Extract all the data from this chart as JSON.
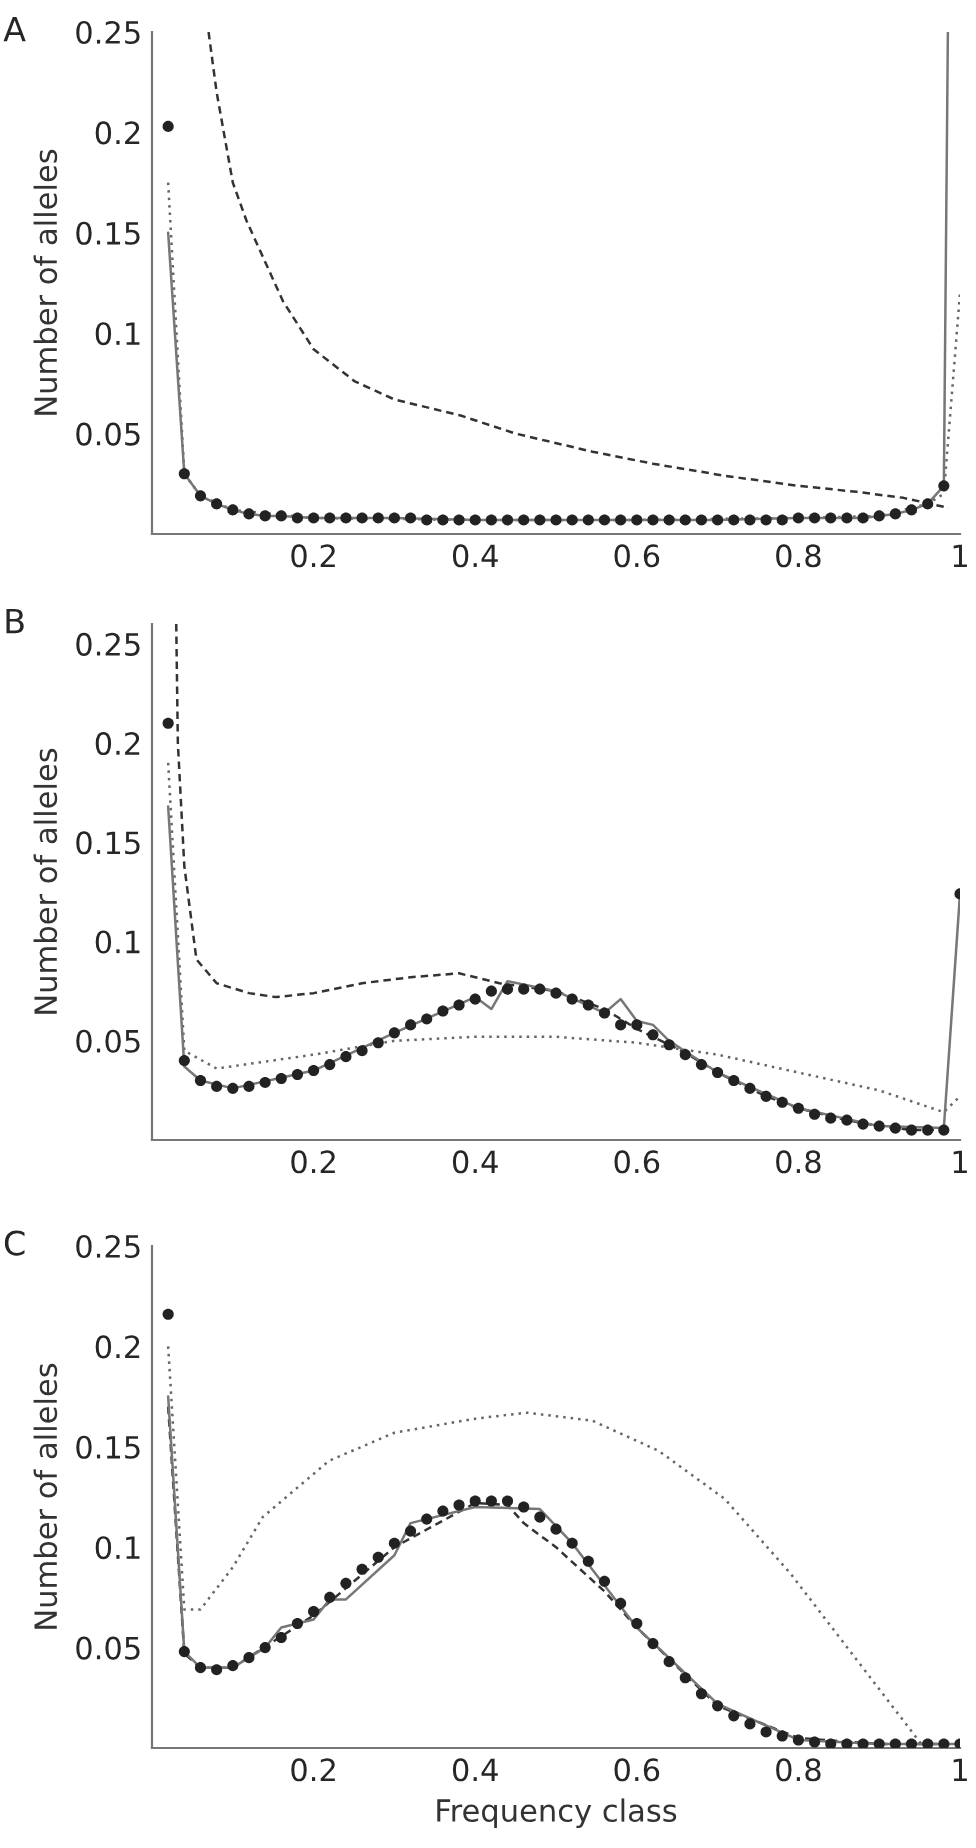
{
  "chart_data": [
    {
      "type": "line",
      "annotations": [
        "A"
      ],
      "ylabel": "Number of alleles",
      "xlim": [
        0,
        1
      ],
      "ylim": [
        0,
        0.25
      ],
      "xticks": [
        0.2,
        0.4,
        0.6,
        0.8,
        1
      ],
      "yticks": [
        0.05,
        0.1,
        0.15,
        0.2,
        0.25
      ],
      "grid": false,
      "legend": false,
      "series": [
        {
          "line_style": "dashed",
          "color": "#333333",
          "x": [
            0.07,
            0.08,
            0.1,
            0.117,
            0.162,
            0.2,
            0.251,
            0.3,
            0.382,
            0.45,
            0.545,
            0.62,
            0.709,
            0.8,
            0.872,
            0.93,
            0.986
          ],
          "values": [
            0.25,
            0.22,
            0.175,
            0.156,
            0.116,
            0.092,
            0.076,
            0.067,
            0.059,
            0.05,
            0.041,
            0.035,
            0.029,
            0.024,
            0.021,
            0.018,
            0.013
          ]
        },
        {
          "line_style": "dotted",
          "color": "#666666",
          "x": [
            0.02,
            0.04,
            0.06,
            0.1,
            0.2,
            0.4,
            0.6,
            0.8,
            0.9,
            0.96,
            0.98,
            1.0
          ],
          "values": [
            0.175,
            0.03,
            0.019,
            0.012,
            0.008,
            0.007,
            0.007,
            0.008,
            0.009,
            0.015,
            0.02,
            0.12
          ]
        },
        {
          "line_style": "solid",
          "color": "#777777",
          "x": [
            0.02,
            0.04,
            0.06,
            0.08,
            0.1,
            0.12,
            0.14,
            0.16,
            0.2,
            0.3,
            0.4,
            0.5,
            0.6,
            0.7,
            0.8,
            0.88,
            0.9,
            0.92,
            0.94,
            0.96,
            0.98,
            0.985
          ],
          "values": [
            0.15,
            0.03,
            0.019,
            0.015,
            0.012,
            0.01,
            0.009,
            0.009,
            0.008,
            0.008,
            0.007,
            0.007,
            0.007,
            0.007,
            0.008,
            0.008,
            0.009,
            0.01,
            0.012,
            0.015,
            0.024,
            0.25
          ]
        },
        {
          "type": "scatter",
          "marker": "circle",
          "color": "#222222",
          "x": [
            0.02,
            0.04,
            0.06,
            0.08,
            0.1,
            0.12,
            0.14,
            0.16,
            0.18,
            0.2,
            0.22,
            0.24,
            0.26,
            0.28,
            0.3,
            0.32,
            0.34,
            0.36,
            0.38,
            0.4,
            0.42,
            0.44,
            0.46,
            0.48,
            0.5,
            0.52,
            0.54,
            0.56,
            0.58,
            0.6,
            0.62,
            0.64,
            0.66,
            0.68,
            0.7,
            0.72,
            0.74,
            0.76,
            0.78,
            0.8,
            0.82,
            0.84,
            0.86,
            0.88,
            0.9,
            0.92,
            0.94,
            0.96,
            0.98
          ],
          "values": [
            0.203,
            0.03,
            0.019,
            0.015,
            0.012,
            0.01,
            0.009,
            0.009,
            0.008,
            0.008,
            0.008,
            0.008,
            0.008,
            0.008,
            0.008,
            0.008,
            0.007,
            0.007,
            0.007,
            0.007,
            0.007,
            0.007,
            0.007,
            0.007,
            0.007,
            0.007,
            0.007,
            0.007,
            0.007,
            0.007,
            0.007,
            0.007,
            0.007,
            0.007,
            0.007,
            0.007,
            0.007,
            0.007,
            0.007,
            0.008,
            0.008,
            0.008,
            0.008,
            0.008,
            0.009,
            0.01,
            0.012,
            0.015,
            0.024
          ]
        }
      ]
    },
    {
      "type": "line",
      "annotations": [
        "B"
      ],
      "ylabel": "Number of alleles",
      "xlim": [
        0,
        1
      ],
      "ylim": [
        0,
        0.26
      ],
      "xticks": [
        0.2,
        0.4,
        0.6,
        0.8,
        1
      ],
      "yticks": [
        0.05,
        0.1,
        0.15,
        0.2,
        0.25
      ],
      "grid": false,
      "legend": false,
      "series": [
        {
          "line_style": "dashed",
          "color": "#333333",
          "x": [
            0.03,
            0.032,
            0.04,
            0.055,
            0.08,
            0.12,
            0.153,
            0.2,
            0.26,
            0.32,
            0.38,
            0.43,
            0.5,
            0.56,
            0.6,
            0.66,
            0.7,
            0.76,
            0.8,
            0.86,
            0.9,
            0.94,
            0.98
          ],
          "values": [
            0.26,
            0.2,
            0.138,
            0.091,
            0.079,
            0.074,
            0.072,
            0.074,
            0.079,
            0.082,
            0.084,
            0.079,
            0.075,
            0.066,
            0.056,
            0.044,
            0.034,
            0.022,
            0.016,
            0.01,
            0.007,
            0.005,
            0.005
          ]
        },
        {
          "line_style": "dotted",
          "color": "#666666",
          "x": [
            0.02,
            0.04,
            0.08,
            0.2,
            0.3,
            0.4,
            0.5,
            0.6,
            0.7,
            0.8,
            0.9,
            0.98,
            1.0
          ],
          "values": [
            0.19,
            0.045,
            0.036,
            0.043,
            0.05,
            0.052,
            0.052,
            0.049,
            0.043,
            0.034,
            0.025,
            0.014,
            0.022
          ]
        },
        {
          "line_style": "solid",
          "color": "#777777",
          "x": [
            0.02,
            0.04,
            0.06,
            0.1,
            0.2,
            0.3,
            0.4,
            0.42,
            0.44,
            0.5,
            0.56,
            0.58,
            0.6,
            0.62,
            0.64,
            0.7,
            0.8,
            0.9,
            0.98,
            1.0
          ],
          "values": [
            0.168,
            0.037,
            0.03,
            0.026,
            0.035,
            0.054,
            0.072,
            0.066,
            0.08,
            0.075,
            0.064,
            0.071,
            0.06,
            0.058,
            0.05,
            0.034,
            0.016,
            0.007,
            0.006,
            0.124
          ]
        },
        {
          "type": "scatter",
          "marker": "circle",
          "color": "#222222",
          "x": [
            0.02,
            0.04,
            0.06,
            0.08,
            0.1,
            0.12,
            0.14,
            0.16,
            0.18,
            0.2,
            0.22,
            0.24,
            0.26,
            0.28,
            0.3,
            0.32,
            0.34,
            0.36,
            0.38,
            0.4,
            0.42,
            0.44,
            0.46,
            0.48,
            0.5,
            0.52,
            0.54,
            0.56,
            0.58,
            0.6,
            0.62,
            0.64,
            0.66,
            0.68,
            0.7,
            0.72,
            0.74,
            0.76,
            0.78,
            0.8,
            0.82,
            0.84,
            0.86,
            0.88,
            0.9,
            0.92,
            0.94,
            0.96,
            0.98,
            1.0
          ],
          "values": [
            0.21,
            0.04,
            0.03,
            0.027,
            0.026,
            0.027,
            0.029,
            0.031,
            0.033,
            0.035,
            0.038,
            0.042,
            0.045,
            0.049,
            0.054,
            0.058,
            0.061,
            0.065,
            0.068,
            0.071,
            0.075,
            0.076,
            0.076,
            0.076,
            0.074,
            0.071,
            0.068,
            0.064,
            0.058,
            0.058,
            0.053,
            0.048,
            0.043,
            0.038,
            0.034,
            0.03,
            0.026,
            0.022,
            0.019,
            0.016,
            0.013,
            0.011,
            0.01,
            0.008,
            0.007,
            0.006,
            0.005,
            0.005,
            0.005,
            0.124
          ]
        }
      ]
    },
    {
      "type": "line",
      "annotations": [
        "C"
      ],
      "xlabel": "Frequency class",
      "ylabel": "Number of alleles",
      "xlim": [
        0,
        1
      ],
      "ylim": [
        0,
        0.25
      ],
      "xticks": [
        0.2,
        0.4,
        0.6,
        0.8,
        1
      ],
      "yticks": [
        0.05,
        0.1,
        0.15,
        0.2,
        0.25
      ],
      "grid": false,
      "legend": false,
      "series": [
        {
          "line_style": "dotted",
          "color": "#666666",
          "x": [
            0.02,
            0.04,
            0.06,
            0.1,
            0.137,
            0.219,
            0.3,
            0.4,
            0.464,
            0.545,
            0.627,
            0.709,
            0.79,
            0.872,
            0.954
          ],
          "values": [
            0.2,
            0.069,
            0.069,
            0.09,
            0.115,
            0.143,
            0.157,
            0.164,
            0.167,
            0.163,
            0.148,
            0.124,
            0.087,
            0.044,
            0.001
          ]
        },
        {
          "line_style": "dashed",
          "color": "#333333",
          "x": [
            0.02,
            0.04,
            0.06,
            0.1,
            0.2,
            0.3,
            0.4,
            0.44,
            0.46,
            0.5,
            0.56,
            0.6,
            0.7,
            0.8,
            0.9,
            1.0
          ],
          "values": [
            0.17,
            0.047,
            0.04,
            0.04,
            0.066,
            0.1,
            0.122,
            0.121,
            0.112,
            0.1,
            0.078,
            0.06,
            0.021,
            0.005,
            0.002,
            0.002
          ]
        },
        {
          "line_style": "solid",
          "color": "#777777",
          "x": [
            0.02,
            0.04,
            0.06,
            0.1,
            0.14,
            0.16,
            0.2,
            0.22,
            0.24,
            0.3,
            0.32,
            0.4,
            0.48,
            0.52,
            0.6,
            0.7,
            0.8,
            0.9,
            1.0
          ],
          "values": [
            0.175,
            0.048,
            0.04,
            0.04,
            0.05,
            0.06,
            0.064,
            0.074,
            0.074,
            0.096,
            0.112,
            0.12,
            0.119,
            0.102,
            0.06,
            0.022,
            0.004,
            0.002,
            0.002
          ]
        },
        {
          "type": "scatter",
          "marker": "circle",
          "color": "#222222",
          "x": [
            0.02,
            0.04,
            0.06,
            0.08,
            0.1,
            0.12,
            0.14,
            0.16,
            0.18,
            0.2,
            0.22,
            0.24,
            0.26,
            0.28,
            0.3,
            0.32,
            0.34,
            0.36,
            0.38,
            0.4,
            0.42,
            0.44,
            0.46,
            0.48,
            0.5,
            0.52,
            0.54,
            0.56,
            0.58,
            0.6,
            0.62,
            0.64,
            0.66,
            0.68,
            0.7,
            0.72,
            0.74,
            0.76,
            0.78,
            0.8,
            0.82,
            0.84,
            0.86,
            0.88,
            0.9,
            0.92,
            0.94,
            0.96,
            0.98,
            1.0
          ],
          "values": [
            0.216,
            0.048,
            0.04,
            0.039,
            0.041,
            0.045,
            0.05,
            0.055,
            0.062,
            0.068,
            0.075,
            0.082,
            0.089,
            0.095,
            0.102,
            0.108,
            0.114,
            0.118,
            0.121,
            0.123,
            0.123,
            0.123,
            0.12,
            0.115,
            0.109,
            0.102,
            0.093,
            0.083,
            0.072,
            0.062,
            0.052,
            0.043,
            0.035,
            0.027,
            0.021,
            0.016,
            0.012,
            0.008,
            0.006,
            0.004,
            0.003,
            0.002,
            0.002,
            0.002,
            0.002,
            0.002,
            0.002,
            0.002,
            0.002,
            0.002
          ]
        }
      ]
    }
  ]
}
